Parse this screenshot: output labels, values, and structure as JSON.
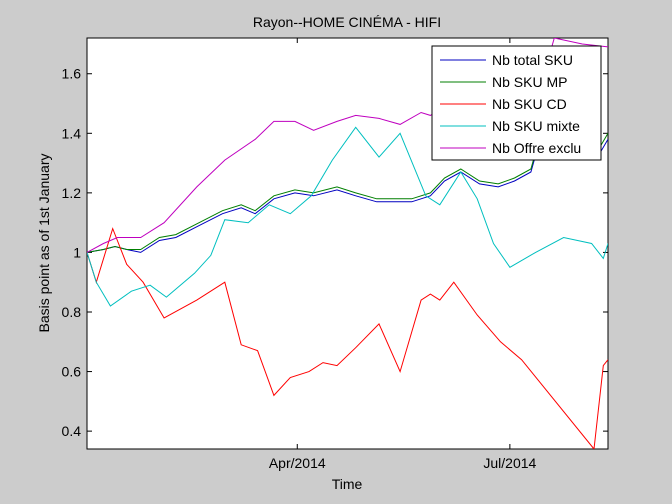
{
  "chart_data": {
    "type": "line",
    "title": "Rayon--HOME CINÉMA - HIFI",
    "xlabel": "Time",
    "ylabel": "Basis point as of 1st January",
    "xlim": [
      "2014-01-01",
      "2014-08-12"
    ],
    "ylim": [
      0.34,
      1.72
    ],
    "x_ticks": [
      {
        "date": "2014-04-01",
        "label": "Apr/2014"
      },
      {
        "date": "2014-07-01",
        "label": "Jul/2014"
      }
    ],
    "y_ticks": [
      {
        "value": 0.4,
        "label": "0.4"
      },
      {
        "value": 0.6,
        "label": "0.6"
      },
      {
        "value": 0.8,
        "label": "0.8"
      },
      {
        "value": 1.0,
        "label": "1"
      },
      {
        "value": 1.2,
        "label": "1.2"
      },
      {
        "value": 1.4,
        "label": "1.4"
      },
      {
        "value": 1.6,
        "label": "1.6"
      }
    ],
    "grid": false,
    "legend_position": "top-right",
    "series": [
      {
        "name": "Nb total SKU",
        "color": "#0000c0",
        "x": [
          "2014-01-01",
          "2014-01-08",
          "2014-01-13",
          "2014-01-18",
          "2014-01-24",
          "2014-02-01",
          "2014-02-08",
          "2014-02-18",
          "2014-02-28",
          "2014-03-08",
          "2014-03-14",
          "2014-03-22",
          "2014-03-31",
          "2014-04-08",
          "2014-04-18",
          "2014-04-26",
          "2014-05-05",
          "2014-05-12",
          "2014-05-20",
          "2014-05-28",
          "2014-06-03",
          "2014-06-10",
          "2014-06-18",
          "2014-06-26",
          "2014-07-03",
          "2014-07-10",
          "2014-07-20",
          "2014-08-01",
          "2014-08-09",
          "2014-08-12"
        ],
        "y": [
          1.0,
          1.01,
          1.02,
          1.01,
          1.0,
          1.04,
          1.05,
          1.09,
          1.13,
          1.15,
          1.13,
          1.18,
          1.2,
          1.19,
          1.21,
          1.19,
          1.17,
          1.17,
          1.17,
          1.19,
          1.24,
          1.27,
          1.23,
          1.22,
          1.24,
          1.27,
          1.55,
          1.38,
          1.34,
          1.38
        ]
      },
      {
        "name": "Nb SKU MP",
        "color": "#007f00",
        "x": [
          "2014-01-01",
          "2014-01-08",
          "2014-01-13",
          "2014-01-18",
          "2014-01-24",
          "2014-02-01",
          "2014-02-08",
          "2014-02-18",
          "2014-02-28",
          "2014-03-08",
          "2014-03-14",
          "2014-03-22",
          "2014-03-31",
          "2014-04-08",
          "2014-04-18",
          "2014-04-26",
          "2014-05-05",
          "2014-05-12",
          "2014-05-20",
          "2014-05-28",
          "2014-06-03",
          "2014-06-10",
          "2014-06-18",
          "2014-06-26",
          "2014-07-03",
          "2014-07-10",
          "2014-07-20",
          "2014-08-01",
          "2014-08-09",
          "2014-08-12"
        ],
        "y": [
          1.0,
          1.01,
          1.02,
          1.01,
          1.01,
          1.05,
          1.06,
          1.1,
          1.14,
          1.16,
          1.14,
          1.19,
          1.21,
          1.2,
          1.22,
          1.2,
          1.18,
          1.18,
          1.18,
          1.2,
          1.25,
          1.28,
          1.24,
          1.23,
          1.25,
          1.28,
          1.56,
          1.4,
          1.36,
          1.4
        ]
      },
      {
        "name": "Nb SKU CD",
        "color": "#ff0000",
        "x": [
          "2014-01-01",
          "2014-01-05",
          "2014-01-12",
          "2014-01-18",
          "2014-01-25",
          "2014-02-03",
          "2014-02-17",
          "2014-03-01",
          "2014-03-08",
          "2014-03-15",
          "2014-03-22",
          "2014-03-29",
          "2014-04-06",
          "2014-04-12",
          "2014-04-18",
          "2014-04-26",
          "2014-05-06",
          "2014-05-15",
          "2014-05-24",
          "2014-05-28",
          "2014-06-01",
          "2014-06-07",
          "2014-06-17",
          "2014-06-27",
          "2014-07-06",
          "2014-08-06",
          "2014-08-10",
          "2014-08-12"
        ],
        "y": [
          1.0,
          0.9,
          1.08,
          0.96,
          0.9,
          0.78,
          0.84,
          0.9,
          0.69,
          0.67,
          0.52,
          0.58,
          0.6,
          0.63,
          0.62,
          0.68,
          0.76,
          0.6,
          0.84,
          0.86,
          0.84,
          0.9,
          0.79,
          0.7,
          0.64,
          0.34,
          0.62,
          0.64
        ]
      },
      {
        "name": "Nb SKU mixte",
        "color": "#00bfbf",
        "x": [
          "2014-01-01",
          "2014-01-05",
          "2014-01-11",
          "2014-01-20",
          "2014-01-28",
          "2014-02-04",
          "2014-02-16",
          "2014-02-23",
          "2014-03-01",
          "2014-03-11",
          "2014-03-20",
          "2014-03-29",
          "2014-04-07",
          "2014-04-16",
          "2014-04-26",
          "2014-05-06",
          "2014-05-15",
          "2014-05-26",
          "2014-06-01",
          "2014-06-10",
          "2014-06-17",
          "2014-06-24",
          "2014-07-01",
          "2014-07-12",
          "2014-07-24",
          "2014-08-05",
          "2014-08-10",
          "2014-08-12"
        ],
        "y": [
          1.0,
          0.9,
          0.82,
          0.87,
          0.89,
          0.85,
          0.93,
          0.99,
          1.11,
          1.1,
          1.16,
          1.13,
          1.19,
          1.31,
          1.42,
          1.32,
          1.4,
          1.19,
          1.16,
          1.27,
          1.18,
          1.03,
          0.95,
          1.0,
          1.05,
          1.03,
          0.98,
          1.03
        ]
      },
      {
        "name": "Nb Offre exclu",
        "color": "#bf00bf",
        "x": [
          "2014-01-01",
          "2014-01-08",
          "2014-01-14",
          "2014-01-24",
          "2014-02-03",
          "2014-02-17",
          "2014-03-01",
          "2014-03-14",
          "2014-03-22",
          "2014-03-31",
          "2014-04-08",
          "2014-04-18",
          "2014-04-26",
          "2014-05-06",
          "2014-05-15",
          "2014-05-24",
          "2014-05-28",
          "2014-06-01",
          "2014-06-10",
          "2014-06-18",
          "2014-06-24",
          "2014-06-28",
          "2014-07-05",
          "2014-07-12",
          "2014-07-20",
          "2014-08-01",
          "2014-08-12"
        ],
        "y": [
          1.0,
          1.03,
          1.05,
          1.05,
          1.1,
          1.22,
          1.31,
          1.38,
          1.44,
          1.44,
          1.41,
          1.44,
          1.46,
          1.45,
          1.43,
          1.47,
          1.46,
          1.48,
          1.5,
          1.49,
          1.47,
          1.48,
          1.5,
          1.5,
          1.72,
          1.7,
          1.69
        ]
      }
    ]
  }
}
